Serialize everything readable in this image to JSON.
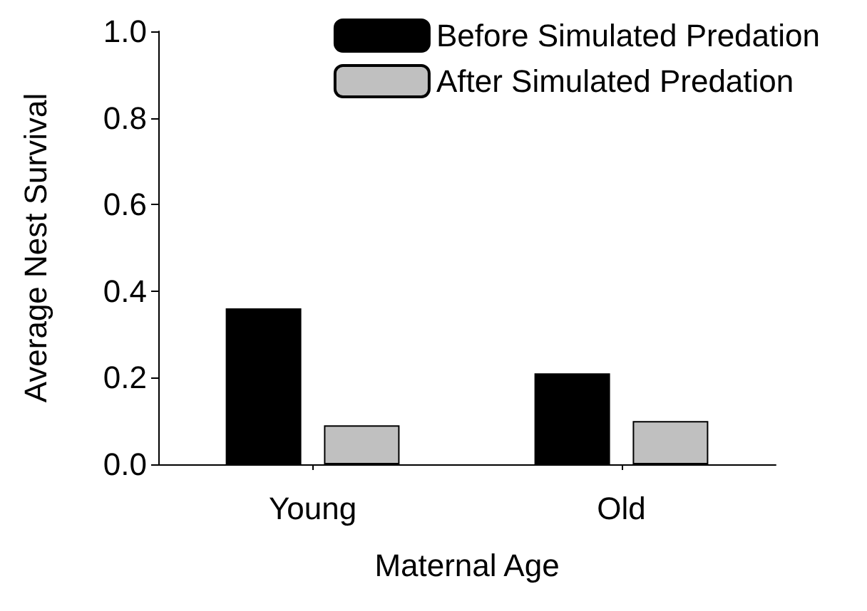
{
  "chart_data": {
    "type": "bar",
    "xlabel": "Maternal Age",
    "ylabel": "Average Nest Survival",
    "categories": [
      "Young",
      "Old"
    ],
    "series": [
      {
        "name": "Before Simulated Predation",
        "color": "#000000",
        "values": [
          0.36,
          0.21
        ]
      },
      {
        "name": "After Simulated Predation",
        "color": "#c0c0c0",
        "values": [
          0.09,
          0.1
        ]
      }
    ],
    "ylim": [
      0,
      1
    ],
    "yticks": [
      {
        "value": 0,
        "label": "0.0"
      },
      {
        "value": 0.2,
        "label": "0.2"
      },
      {
        "value": 0.4,
        "label": "0.4"
      },
      {
        "value": 0.6,
        "label": "0.6"
      },
      {
        "value": 0.8,
        "label": "0.8"
      },
      {
        "value": 1,
        "label": "1.0"
      }
    ],
    "grid": false,
    "legend": "top right"
  }
}
